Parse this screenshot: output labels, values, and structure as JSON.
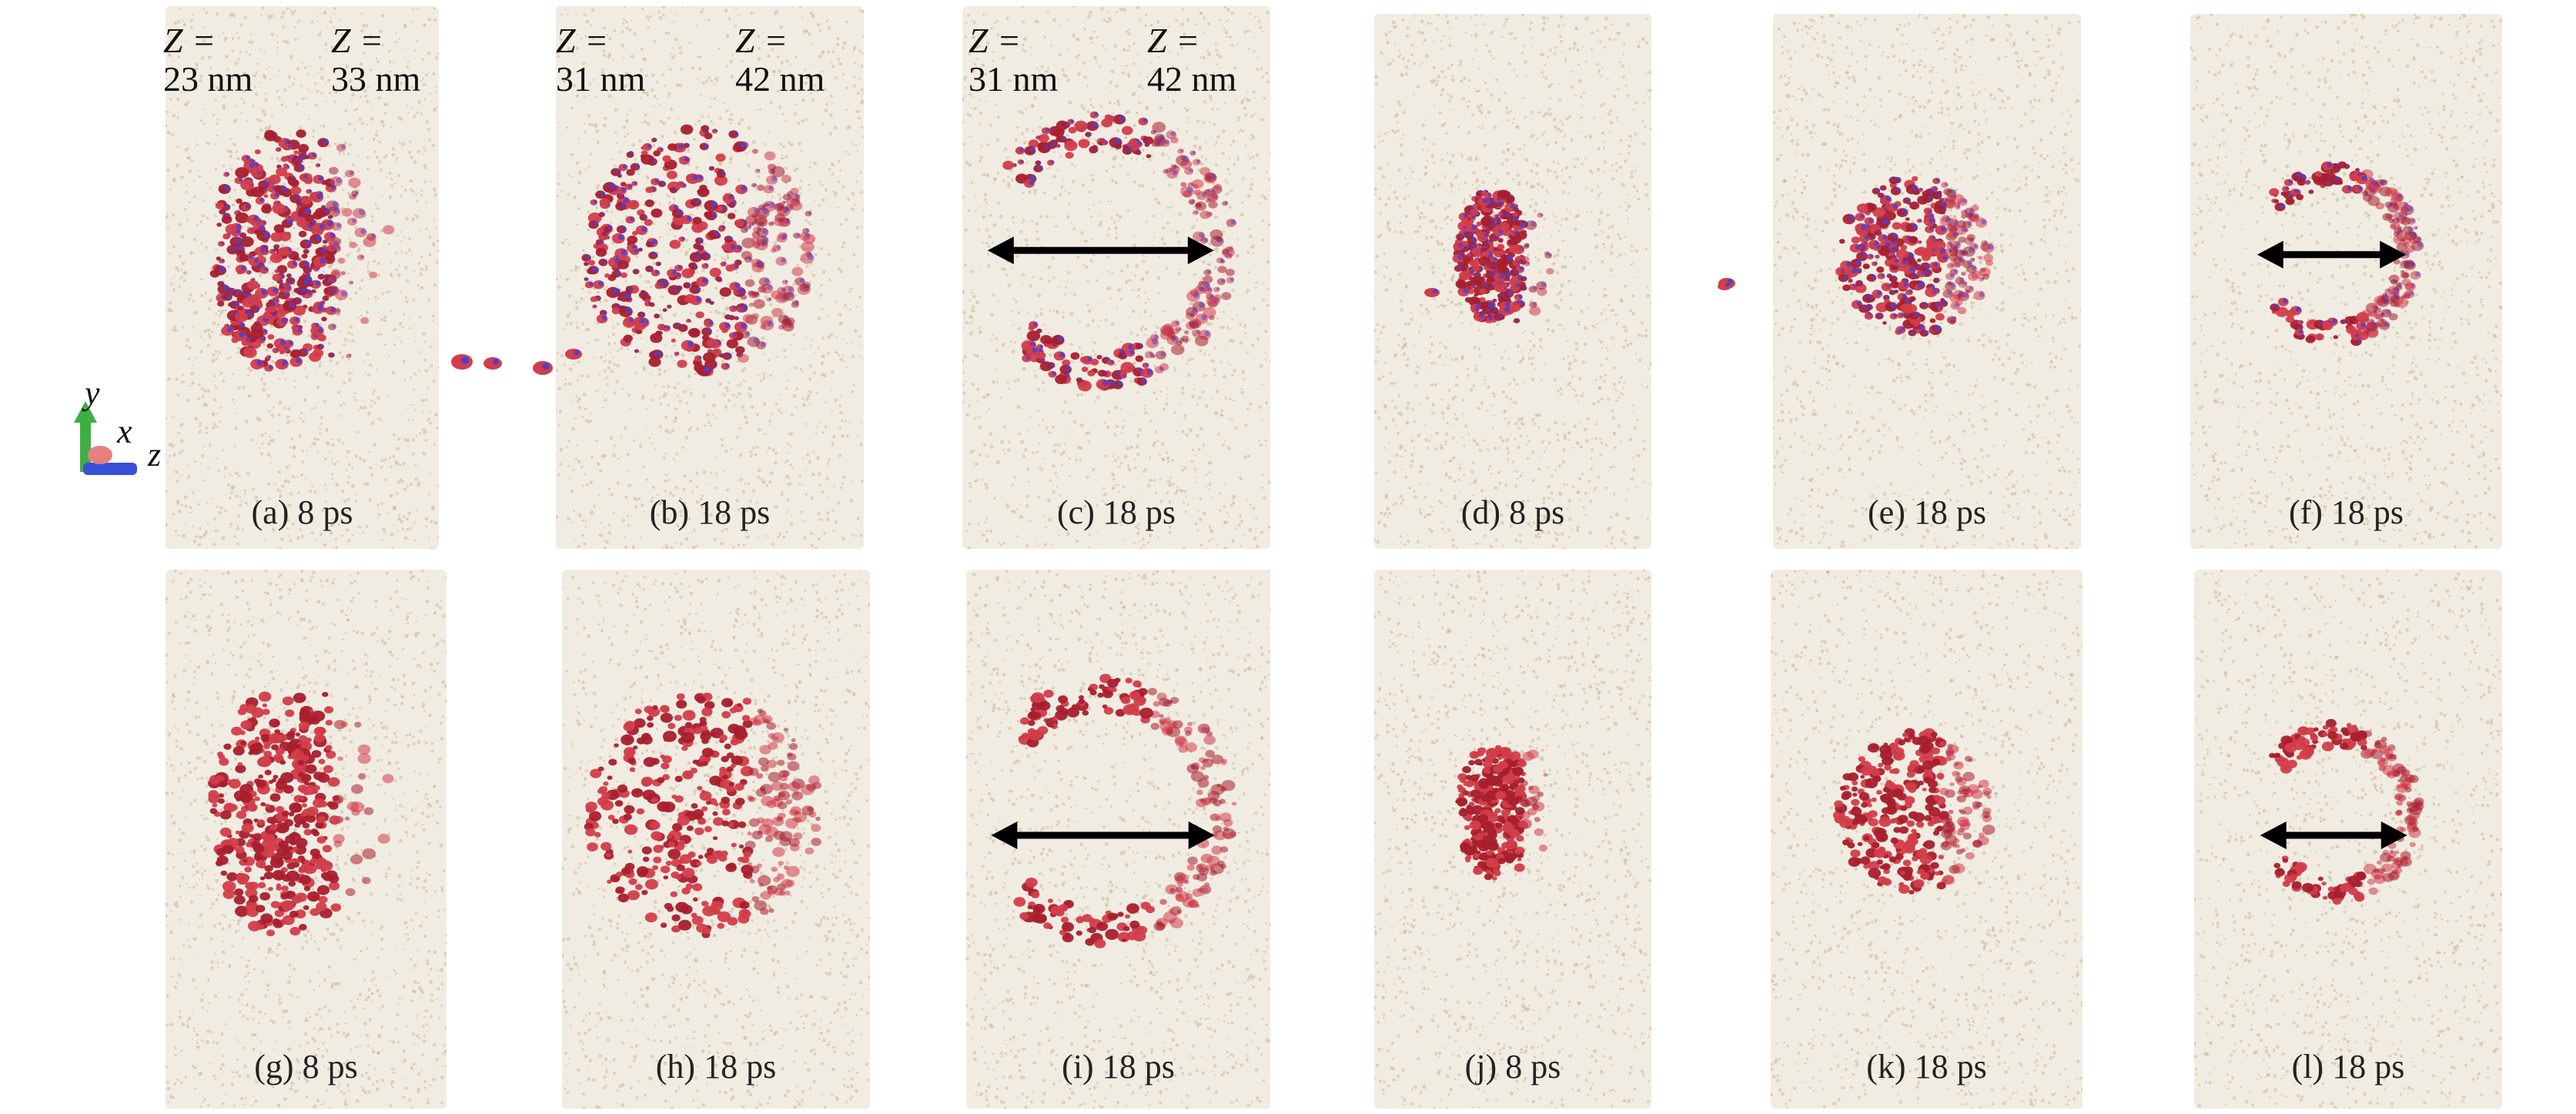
{
  "colors": {
    "background_sand": "#f1ece2",
    "sand_dot": "#c9b896",
    "blob_red": "#d23d4a",
    "blob_red_dark": "#a81f2d",
    "blob_blue": "#4f3fd0",
    "arrow": "#000000",
    "axis_y": "#3cb043",
    "axis_z": "#3a4fd8",
    "axis_x": "#e87f7f"
  },
  "z_labels": [
    {
      "left": {
        "var": "Z =",
        "value": "23 nm"
      },
      "right": {
        "var": "Z =",
        "value": "33 nm"
      }
    },
    {
      "left": {
        "var": "Z =",
        "value": "31 nm"
      },
      "right": {
        "var": "Z =",
        "value": "42 nm"
      }
    },
    {
      "left": {
        "var": "Z =",
        "value": "31 nm"
      },
      "right": {
        "var": "Z =",
        "value": "42 nm"
      }
    }
  ],
  "axes": {
    "y": "y",
    "x": "x",
    "z": "z"
  },
  "panels": [
    {
      "caption": "(a) 8 ps",
      "shape": "blob",
      "scale": 1.0,
      "colored": true,
      "arrow": false
    },
    {
      "caption": "(b) 18 ps",
      "shape": "disk",
      "scale": 1.0,
      "colored": true,
      "arrow": false
    },
    {
      "caption": "(c) 18 ps",
      "shape": "ring",
      "scale": 1.0,
      "colored": true,
      "arrow": true
    },
    {
      "caption": "(d) 8 ps",
      "shape": "blob",
      "scale": 0.55,
      "colored": true,
      "arrow": false
    },
    {
      "caption": "(e) 18 ps",
      "shape": "disk",
      "scale": 0.65,
      "colored": true,
      "arrow": false
    },
    {
      "caption": "(f) 18 ps",
      "shape": "ring",
      "scale": 0.65,
      "colored": true,
      "arrow": true
    },
    {
      "caption": "(g) 8 ps",
      "shape": "blob",
      "scale": 1.0,
      "colored": false,
      "arrow": false
    },
    {
      "caption": "(h) 18 ps",
      "shape": "disk",
      "scale": 1.0,
      "colored": false,
      "arrow": false
    },
    {
      "caption": "(i) 18 ps",
      "shape": "ring",
      "scale": 1.0,
      "colored": false,
      "arrow": true
    },
    {
      "caption": "(j) 8 ps",
      "shape": "blob",
      "scale": 0.55,
      "colored": false,
      "arrow": false
    },
    {
      "caption": "(k) 18 ps",
      "shape": "disk",
      "scale": 0.65,
      "colored": false,
      "arrow": false
    },
    {
      "caption": "(l) 18 ps",
      "shape": "ring",
      "scale": 0.65,
      "colored": false,
      "arrow": true
    }
  ]
}
